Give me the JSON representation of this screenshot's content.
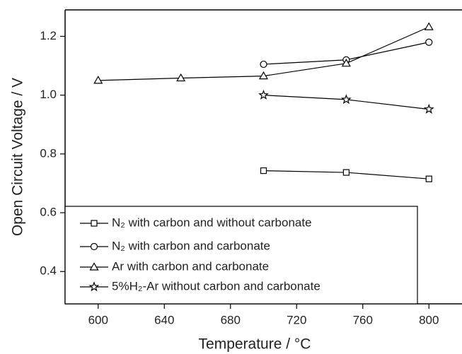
{
  "chart_data": {
    "type": "line",
    "x_label": "Temperature / °C",
    "y_label": "Open Circuit Voltage / V",
    "xlim": [
      580,
      820
    ],
    "xticks": [
      600,
      640,
      680,
      720,
      760,
      800
    ],
    "ylim": [
      0.29,
      1.29
    ],
    "yticks": [
      0.4,
      0.6,
      0.8,
      {
        "value": 1,
        "label": "1.0"
      },
      1.2
    ],
    "legend": "lower left",
    "series": [
      {
        "name": "N₂ with carbon and without carbonate",
        "color": "#000000",
        "marker": "square",
        "x": [
          700,
          750,
          800
        ],
        "values": [
          0.743,
          0.737,
          0.715
        ]
      },
      {
        "name": "N₂ with carbon and carbonate",
        "color": "#000000",
        "marker": "circle",
        "x": [
          700,
          750,
          800
        ],
        "values": [
          1.105,
          1.12,
          1.18
        ]
      },
      {
        "name": "Ar with carbon and carbonate",
        "color": "#000000",
        "marker": "triangle",
        "x": [
          600,
          650,
          700,
          750,
          800
        ],
        "values": [
          1.05,
          1.058,
          1.065,
          1.108,
          1.232
        ]
      },
      {
        "name": "5%H₂-Ar without carbon and carbonate",
        "color": "#000000",
        "marker": "star",
        "x": [
          700,
          750,
          800
        ],
        "values": [
          1.0,
          0.985,
          0.952
        ]
      }
    ]
  }
}
